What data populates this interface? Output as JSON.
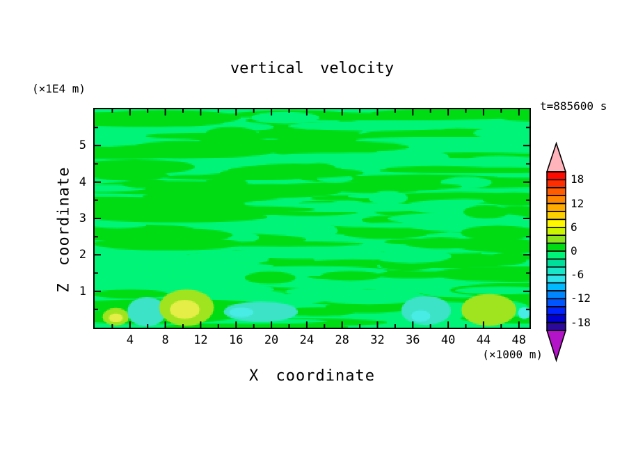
{
  "header": {
    "title": "vertical velocity",
    "time_label": "t=885600 s"
  },
  "axes_text": {
    "x_title": "X coordinate",
    "y_title": "Z coordinate",
    "x_units": "(×1000 m)",
    "y_units": "(×1E4 m)"
  },
  "chart_data": {
    "type": "heatmap",
    "subtype": "filled-contour",
    "title": "vertical velocity",
    "time_annotation": "t=885600 s",
    "xlabel": "X coordinate",
    "ylabel": "Z coordinate",
    "x_units": "(×1000 m)",
    "y_units": "(×1E4 m)",
    "x_range": [
      0,
      49.2
    ],
    "y_range": [
      0,
      6
    ],
    "grid": false,
    "x_major_ticks": [
      4,
      8,
      12,
      16,
      20,
      24,
      28,
      32,
      36,
      40,
      44,
      48
    ],
    "x_minor_ticks": [
      2,
      6,
      10,
      14,
      18,
      22,
      26,
      30,
      34,
      38,
      42,
      46
    ],
    "y_major_ticks": [
      1,
      2,
      3,
      4,
      5
    ],
    "y_minor_ticks": [
      0.5,
      1.5,
      2.5,
      3.5,
      4.5,
      5.5
    ],
    "colorbar": {
      "position": "right",
      "tick_labels": [
        "18",
        "12",
        "6",
        "0",
        "-6",
        "-12",
        "-18"
      ],
      "tick_values": [
        18,
        12,
        6,
        0,
        -6,
        -12,
        -18
      ],
      "cell_interval": 2,
      "top_value": 20,
      "bottom_value": -20,
      "cell_colors_top_to_bottom": [
        "#ff0a00",
        "#ff2e00",
        "#ff5c00",
        "#ff8700",
        "#ffab00",
        "#ffd000",
        "#fff700",
        "#ccf500",
        "#8ce41e",
        "#00dc14",
        "#00f578",
        "#00e09b",
        "#19e6c8",
        "#2ee4ea",
        "#00b9ff",
        "#0087ff",
        "#0055ff",
        "#0024ff",
        "#0000d2",
        "#2b0a9b"
      ],
      "over_arrow_color": "#ffb4bc",
      "under_arrow_color": "#b414c8"
    },
    "field": {
      "description": "Vertical velocity is near zero almost everywhere: interleaved horizontal streaks of the 0..+2 band and the -2..0 band fill the domain; stronger updraft (yellow-green) and downdraft (turquoise/cyan) cells appear near the lower boundary below z = 1 (x1E4 m).",
      "dominant_bands": [
        "-2..0",
        "0..+2"
      ],
      "band_colors": {
        "pos0": "#00dc14",
        "neg0": "#00f578",
        "pos1": "#9fe41e",
        "pos2": "#e4ee46",
        "neg1": "#3ce3c6",
        "neg2": "#49ece4"
      },
      "bottom_features": [
        {
          "band": "pos1",
          "x": 2.4,
          "z": 0.3,
          "rx": 1.5,
          "rz": 0.24
        },
        {
          "band": "pos2",
          "x": 2.4,
          "z": 0.27,
          "rx": 0.8,
          "rz": 0.12
        },
        {
          "band": "neg1",
          "x": 5.9,
          "z": 0.44,
          "rx": 2.2,
          "rz": 0.4
        },
        {
          "band": "pos1",
          "x": 10.4,
          "z": 0.55,
          "rx": 3.1,
          "rz": 0.5
        },
        {
          "band": "pos2",
          "x": 10.2,
          "z": 0.5,
          "rx": 1.7,
          "rz": 0.26
        },
        {
          "band": "neg1",
          "x": 18.8,
          "z": 0.44,
          "rx": 4.2,
          "rz": 0.28
        },
        {
          "band": "neg2",
          "x": 16.6,
          "z": 0.42,
          "rx": 1.4,
          "rz": 0.13
        },
        {
          "band": "neg1",
          "x": 37.5,
          "z": 0.47,
          "rx": 2.8,
          "rz": 0.4
        },
        {
          "band": "neg2",
          "x": 36.9,
          "z": 0.32,
          "rx": 1.1,
          "rz": 0.16
        },
        {
          "band": "pos1",
          "x": 44.6,
          "z": 0.49,
          "rx": 3.1,
          "rz": 0.44
        },
        {
          "band": "neg2",
          "x": 48.6,
          "z": 0.4,
          "rx": 0.7,
          "rz": 0.16
        }
      ]
    }
  }
}
